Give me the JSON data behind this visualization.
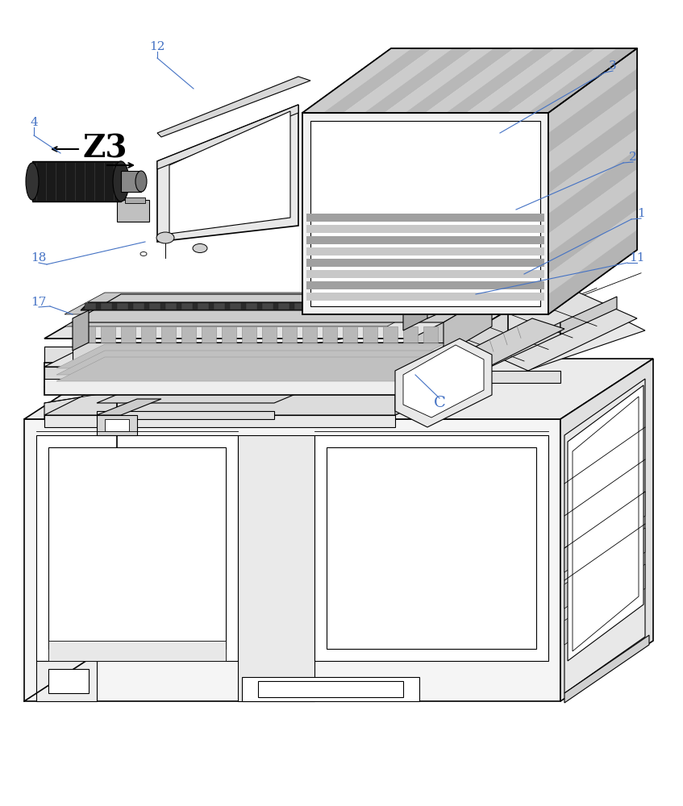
{
  "bg": "#ffffff",
  "lc": "#000000",
  "lc_blue": "#4472C4",
  "lw": 1.0,
  "fig_w": 8.47,
  "fig_h": 10.0,
  "dpi": 100
}
